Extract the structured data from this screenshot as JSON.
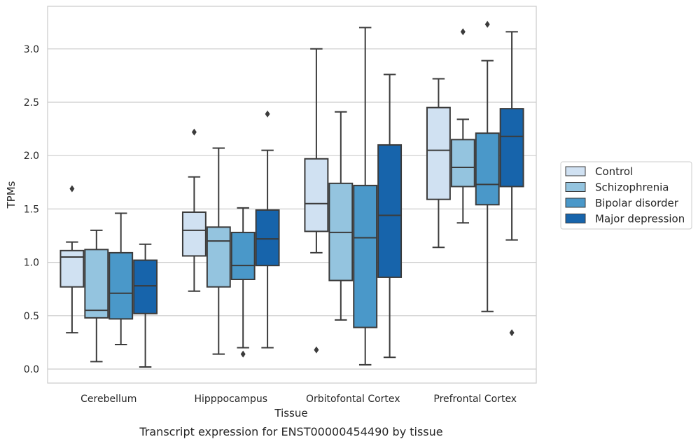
{
  "chart_data": {
    "type": "box",
    "title": "",
    "caption": "Transcript expression for ENST00000454490 by tissue",
    "xlabel": "Tissue",
    "ylabel": "TPMs",
    "ylim": [
      -0.13,
      3.37
    ],
    "yticks": [
      "0.0",
      "0.5",
      "1.0",
      "1.5",
      "2.0",
      "2.5",
      "3.0"
    ],
    "grid": "horizontal",
    "legend_position": "right",
    "categories": [
      "Cerebellum",
      "Hipppocampus",
      "Orbitofontal Cortex",
      "Prefrontal Cortex"
    ],
    "series": [
      {
        "name": "Control",
        "color": "#d0e1f2",
        "boxes": [
          {
            "whislo": 0.34,
            "q1": 0.77,
            "med": 1.05,
            "q3": 1.11,
            "whishi": 1.19,
            "fliers": [
              1.69
            ]
          },
          {
            "whislo": 0.73,
            "q1": 1.06,
            "med": 1.3,
            "q3": 1.47,
            "whishi": 1.8,
            "fliers": [
              2.22
            ]
          },
          {
            "whislo": 1.09,
            "q1": 1.29,
            "med": 1.55,
            "q3": 1.97,
            "whishi": 3.0,
            "fliers": [
              0.18
            ]
          },
          {
            "whislo": 1.14,
            "q1": 1.59,
            "med": 2.05,
            "q3": 2.45,
            "whishi": 2.72,
            "fliers": []
          }
        ]
      },
      {
        "name": "Schizophrenia",
        "color": "#94c4df",
        "boxes": [
          {
            "whislo": 0.07,
            "q1": 0.48,
            "med": 0.55,
            "q3": 1.12,
            "whishi": 1.3,
            "fliers": []
          },
          {
            "whislo": 0.14,
            "q1": 0.77,
            "med": 1.2,
            "q3": 1.33,
            "whishi": 2.07,
            "fliers": []
          },
          {
            "whislo": 0.46,
            "q1": 0.83,
            "med": 1.28,
            "q3": 1.74,
            "whishi": 2.41,
            "fliers": []
          },
          {
            "whislo": 1.37,
            "q1": 1.71,
            "med": 1.89,
            "q3": 2.15,
            "whishi": 2.34,
            "fliers": [
              3.16
            ]
          }
        ]
      },
      {
        "name": "Bipolar disorder",
        "color": "#4a98c9",
        "boxes": [
          {
            "whislo": 0.23,
            "q1": 0.47,
            "med": 0.71,
            "q3": 1.09,
            "whishi": 1.46,
            "fliers": []
          },
          {
            "whislo": 0.2,
            "q1": 0.84,
            "med": 0.97,
            "q3": 1.28,
            "whishi": 1.51,
            "fliers": [
              0.14
            ]
          },
          {
            "whislo": 0.04,
            "q1": 0.39,
            "med": 1.23,
            "q3": 1.72,
            "whishi": 3.2,
            "fliers": []
          },
          {
            "whislo": 0.54,
            "q1": 1.54,
            "med": 1.73,
            "q3": 2.21,
            "whishi": 2.89,
            "fliers": [
              3.23
            ]
          }
        ]
      },
      {
        "name": "Major depression",
        "color": "#1764ab",
        "boxes": [
          {
            "whislo": 0.02,
            "q1": 0.52,
            "med": 0.78,
            "q3": 1.02,
            "whishi": 1.17,
            "fliers": []
          },
          {
            "whislo": 0.2,
            "q1": 0.97,
            "med": 1.22,
            "q3": 1.49,
            "whishi": 2.05,
            "fliers": [
              2.39
            ]
          },
          {
            "whislo": 0.11,
            "q1": 0.86,
            "med": 1.44,
            "q3": 2.1,
            "whishi": 2.76,
            "fliers": []
          },
          {
            "whislo": 1.21,
            "q1": 1.71,
            "med": 2.18,
            "q3": 2.44,
            "whishi": 3.16,
            "fliers": [
              0.34
            ]
          }
        ]
      }
    ]
  }
}
